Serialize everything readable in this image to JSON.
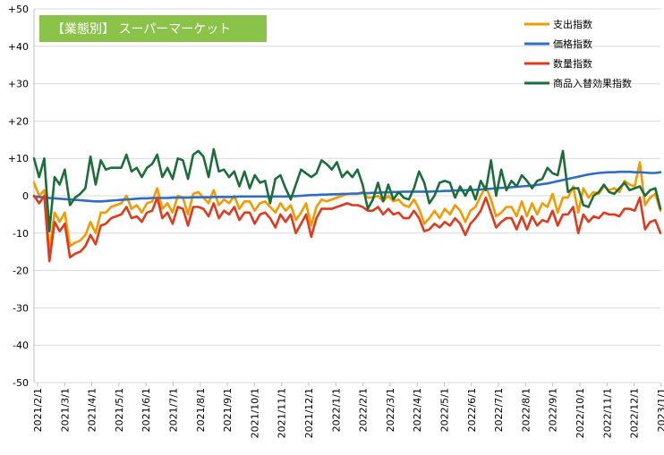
{
  "chart_data": {
    "type": "line",
    "title": "【業態別】 スーパーマーケット",
    "xlabel": "",
    "ylabel": "",
    "ylim": [
      -50,
      50
    ],
    "y_ticks": [
      "+50",
      "+40",
      "+30",
      "+20",
      "+10",
      "0",
      "-10",
      "-20",
      "-30",
      "-40",
      "-50"
    ],
    "x_ticks": [
      "2021/2/1",
      "2021/3/1",
      "2021/4/1",
      "2021/5/1",
      "2021/6/1",
      "2021/7/1",
      "2021/8/1",
      "2021/9/1",
      "2021/10/1",
      "2021/11/1",
      "2021/12/1",
      "2022/1/1",
      "2022/2/1",
      "2022/3/1",
      "2022/4/1",
      "2022/5/1",
      "2022/6/1",
      "2022/7/1",
      "2022/8/1",
      "2022/9/1",
      "2022/10/1",
      "2022/11/1",
      "2022/12/1",
      "2023/1/1"
    ],
    "grid": "horizontal",
    "legend_position": "top-right",
    "series": [
      {
        "name": "支出指数",
        "color": "#f29a00",
        "values": [
          3.5,
          0,
          1.5,
          -15,
          -4.5,
          -7,
          -4.5,
          -13.5,
          -12.5,
          -12,
          -10.5,
          -7,
          -10,
          -4.5,
          -4.5,
          -3,
          -2.5,
          -2,
          0,
          -3.5,
          -2.5,
          -4.5,
          -2,
          -1.5,
          2,
          -3.5,
          -2,
          -4.5,
          0,
          -0.5,
          -5,
          0.5,
          1,
          -0.5,
          -2,
          1.5,
          -2.5,
          -1,
          -2,
          0,
          -3.5,
          -1.5,
          -1.5,
          -4,
          -2,
          -1.5,
          -3,
          -4.5,
          -2,
          -4,
          -2.5,
          -6.5,
          -4.5,
          -2,
          -8,
          -3,
          -1,
          -1.5,
          -1,
          -0.5,
          0,
          0.5,
          0.5,
          0.5,
          1,
          -0.5,
          -0.5,
          0,
          -1.5,
          0,
          -1.5,
          -1,
          -2.5,
          -3,
          -1,
          -3.5,
          -7.5,
          -6,
          -4,
          -6,
          -3.5,
          -5,
          -2.5,
          -4,
          -7,
          -4,
          -3,
          0,
          2.5,
          -1,
          -5.5,
          -4.5,
          -3,
          -3,
          -5.5,
          -1.5,
          -5.5,
          -2,
          -5,
          -2,
          -3,
          0.5,
          -4.5,
          -0.5,
          -0.5,
          2.5,
          -4.5,
          2,
          -0.5,
          1,
          0.5,
          2.5,
          1.5,
          2,
          1,
          4,
          3,
          2.5,
          9,
          -2.5,
          -0.5,
          0.5,
          -4
        ],
        "tick_label": "支出指数"
      },
      {
        "name": "価格指数",
        "color": "#2f6dc0",
        "values": [
          -0.2,
          -0.3,
          -0.5,
          -0.6,
          -0.7,
          -0.8,
          -0.9,
          -1,
          -1.1,
          -1.2,
          -1.3,
          -1.4,
          -1.5,
          -1.5,
          -1.4,
          -1.3,
          -1.2,
          -1.1,
          -1,
          -0.9,
          -0.8,
          -0.7,
          -0.7,
          -0.6,
          -0.6,
          -0.6,
          -0.6,
          -0.5,
          -0.5,
          -0.5,
          -0.5,
          -0.4,
          -0.4,
          -0.4,
          -0.4,
          -0.3,
          -0.3,
          -0.3,
          -0.3,
          -0.3,
          -0.2,
          -0.2,
          -0.2,
          -0.2,
          -0.2,
          -0.2,
          -0.2,
          -0.2,
          -0.2,
          -0.2,
          -0.1,
          -0.1,
          0,
          0.1,
          0.2,
          0.2,
          0.3,
          0.3,
          0.4,
          0.4,
          0.5,
          0.5,
          0.6,
          0.6,
          0.7,
          0.7,
          0.8,
          0.8,
          0.9,
          0.9,
          1,
          1,
          1.1,
          1.1,
          1.1,
          1.1,
          1.1,
          1.1,
          1.2,
          1.2,
          1.3,
          1.3,
          1.4,
          1.4,
          1.5,
          1.5,
          1.6,
          1.7,
          1.8,
          1.9,
          2,
          2.1,
          2.2,
          2.3,
          2.4,
          2.5,
          2.6,
          2.7,
          2.9,
          3.1,
          3.3,
          3.6,
          3.9,
          4.2,
          4.5,
          4.8,
          5.1,
          5.4,
          5.7,
          5.9,
          6.1,
          6.2,
          6.3,
          6.3,
          6.4,
          6.4,
          6.4,
          6.3,
          6.3,
          6.2,
          6.1,
          6.1,
          6.3
        ],
        "tick_label": "価格指数"
      },
      {
        "name": "数量指数",
        "color": "#e03a1e",
        "values": [
          0,
          -2,
          0,
          -17.5,
          -7,
          -9.5,
          -7.5,
          -16.5,
          -15.5,
          -15,
          -13.5,
          -10.5,
          -13,
          -8,
          -7.5,
          -6,
          -5.5,
          -5,
          -3,
          -6,
          -5.5,
          -7,
          -4.5,
          -4,
          -0.5,
          -6,
          -4.5,
          -7.5,
          -3,
          -3.5,
          -8,
          -3,
          -3,
          -3.5,
          -5.5,
          -2,
          -6,
          -4,
          -5,
          -3,
          -6.5,
          -4.5,
          -4.5,
          -7.5,
          -5,
          -4.5,
          -6,
          -8.5,
          -5,
          -7,
          -5,
          -10,
          -7.5,
          -5,
          -11,
          -6,
          -3.5,
          -3.5,
          -3.5,
          -3,
          -2.5,
          -2,
          -2.5,
          -2.5,
          -3,
          -4,
          -4,
          -3,
          -5,
          -3.5,
          -5,
          -4.5,
          -6,
          -6,
          -4,
          -6,
          -9.5,
          -9,
          -7.5,
          -8.5,
          -7,
          -8,
          -6,
          -7.5,
          -10.5,
          -7.5,
          -6,
          -4,
          -0.5,
          -4.5,
          -8.5,
          -7,
          -6,
          -6,
          -9,
          -5.5,
          -9,
          -5.5,
          -8,
          -6.5,
          -7,
          -4,
          -8,
          -5,
          -5,
          -3,
          -10,
          -5,
          -7,
          -5.5,
          -6,
          -4.5,
          -5,
          -5,
          -5.5,
          -3.5,
          -3.5,
          -4,
          -0.5,
          -9,
          -7,
          -6.5,
          -10
        ],
        "tick_label": "数量指数"
      },
      {
        "name": "商品入替効果指数",
        "color": "#1b6e3a",
        "values": [
          10,
          5,
          10,
          -9.5,
          5,
          3,
          7,
          -2.5,
          -0.5,
          0.5,
          2,
          10.5,
          3,
          9.5,
          7,
          7.5,
          7.5,
          7.5,
          11,
          6.5,
          7.5,
          5,
          7.5,
          8.5,
          11,
          5,
          7.5,
          4.5,
          10,
          9.5,
          4.5,
          11,
          12,
          10.5,
          5,
          12.5,
          6.5,
          7,
          5,
          6.5,
          2.5,
          6.5,
          2,
          5.5,
          3.5,
          4,
          -2,
          4.5,
          5.5,
          2,
          -1,
          3,
          7,
          6,
          5,
          6,
          9.5,
          8.5,
          7,
          9,
          5,
          6.5,
          5,
          7,
          3,
          -3.5,
          -1,
          3.5,
          -1.5,
          3,
          -1,
          1,
          -0.5,
          -1,
          2,
          6.5,
          3.5,
          -2,
          0,
          3.5,
          4,
          3.5,
          -0.5,
          2.5,
          0,
          2.5,
          -1,
          4,
          1.5,
          9.5,
          0,
          7,
          1.5,
          4,
          2.5,
          5.5,
          4,
          2,
          4,
          4.5,
          7.5,
          6,
          5.5,
          12,
          1,
          2,
          2,
          -2.5,
          -3,
          0,
          1,
          3,
          1,
          0.5,
          2,
          3.5,
          1.5,
          2,
          2.5,
          0,
          1.5,
          2,
          -3.5
        ],
        "tick_label": "商品入替効果指数"
      }
    ]
  }
}
